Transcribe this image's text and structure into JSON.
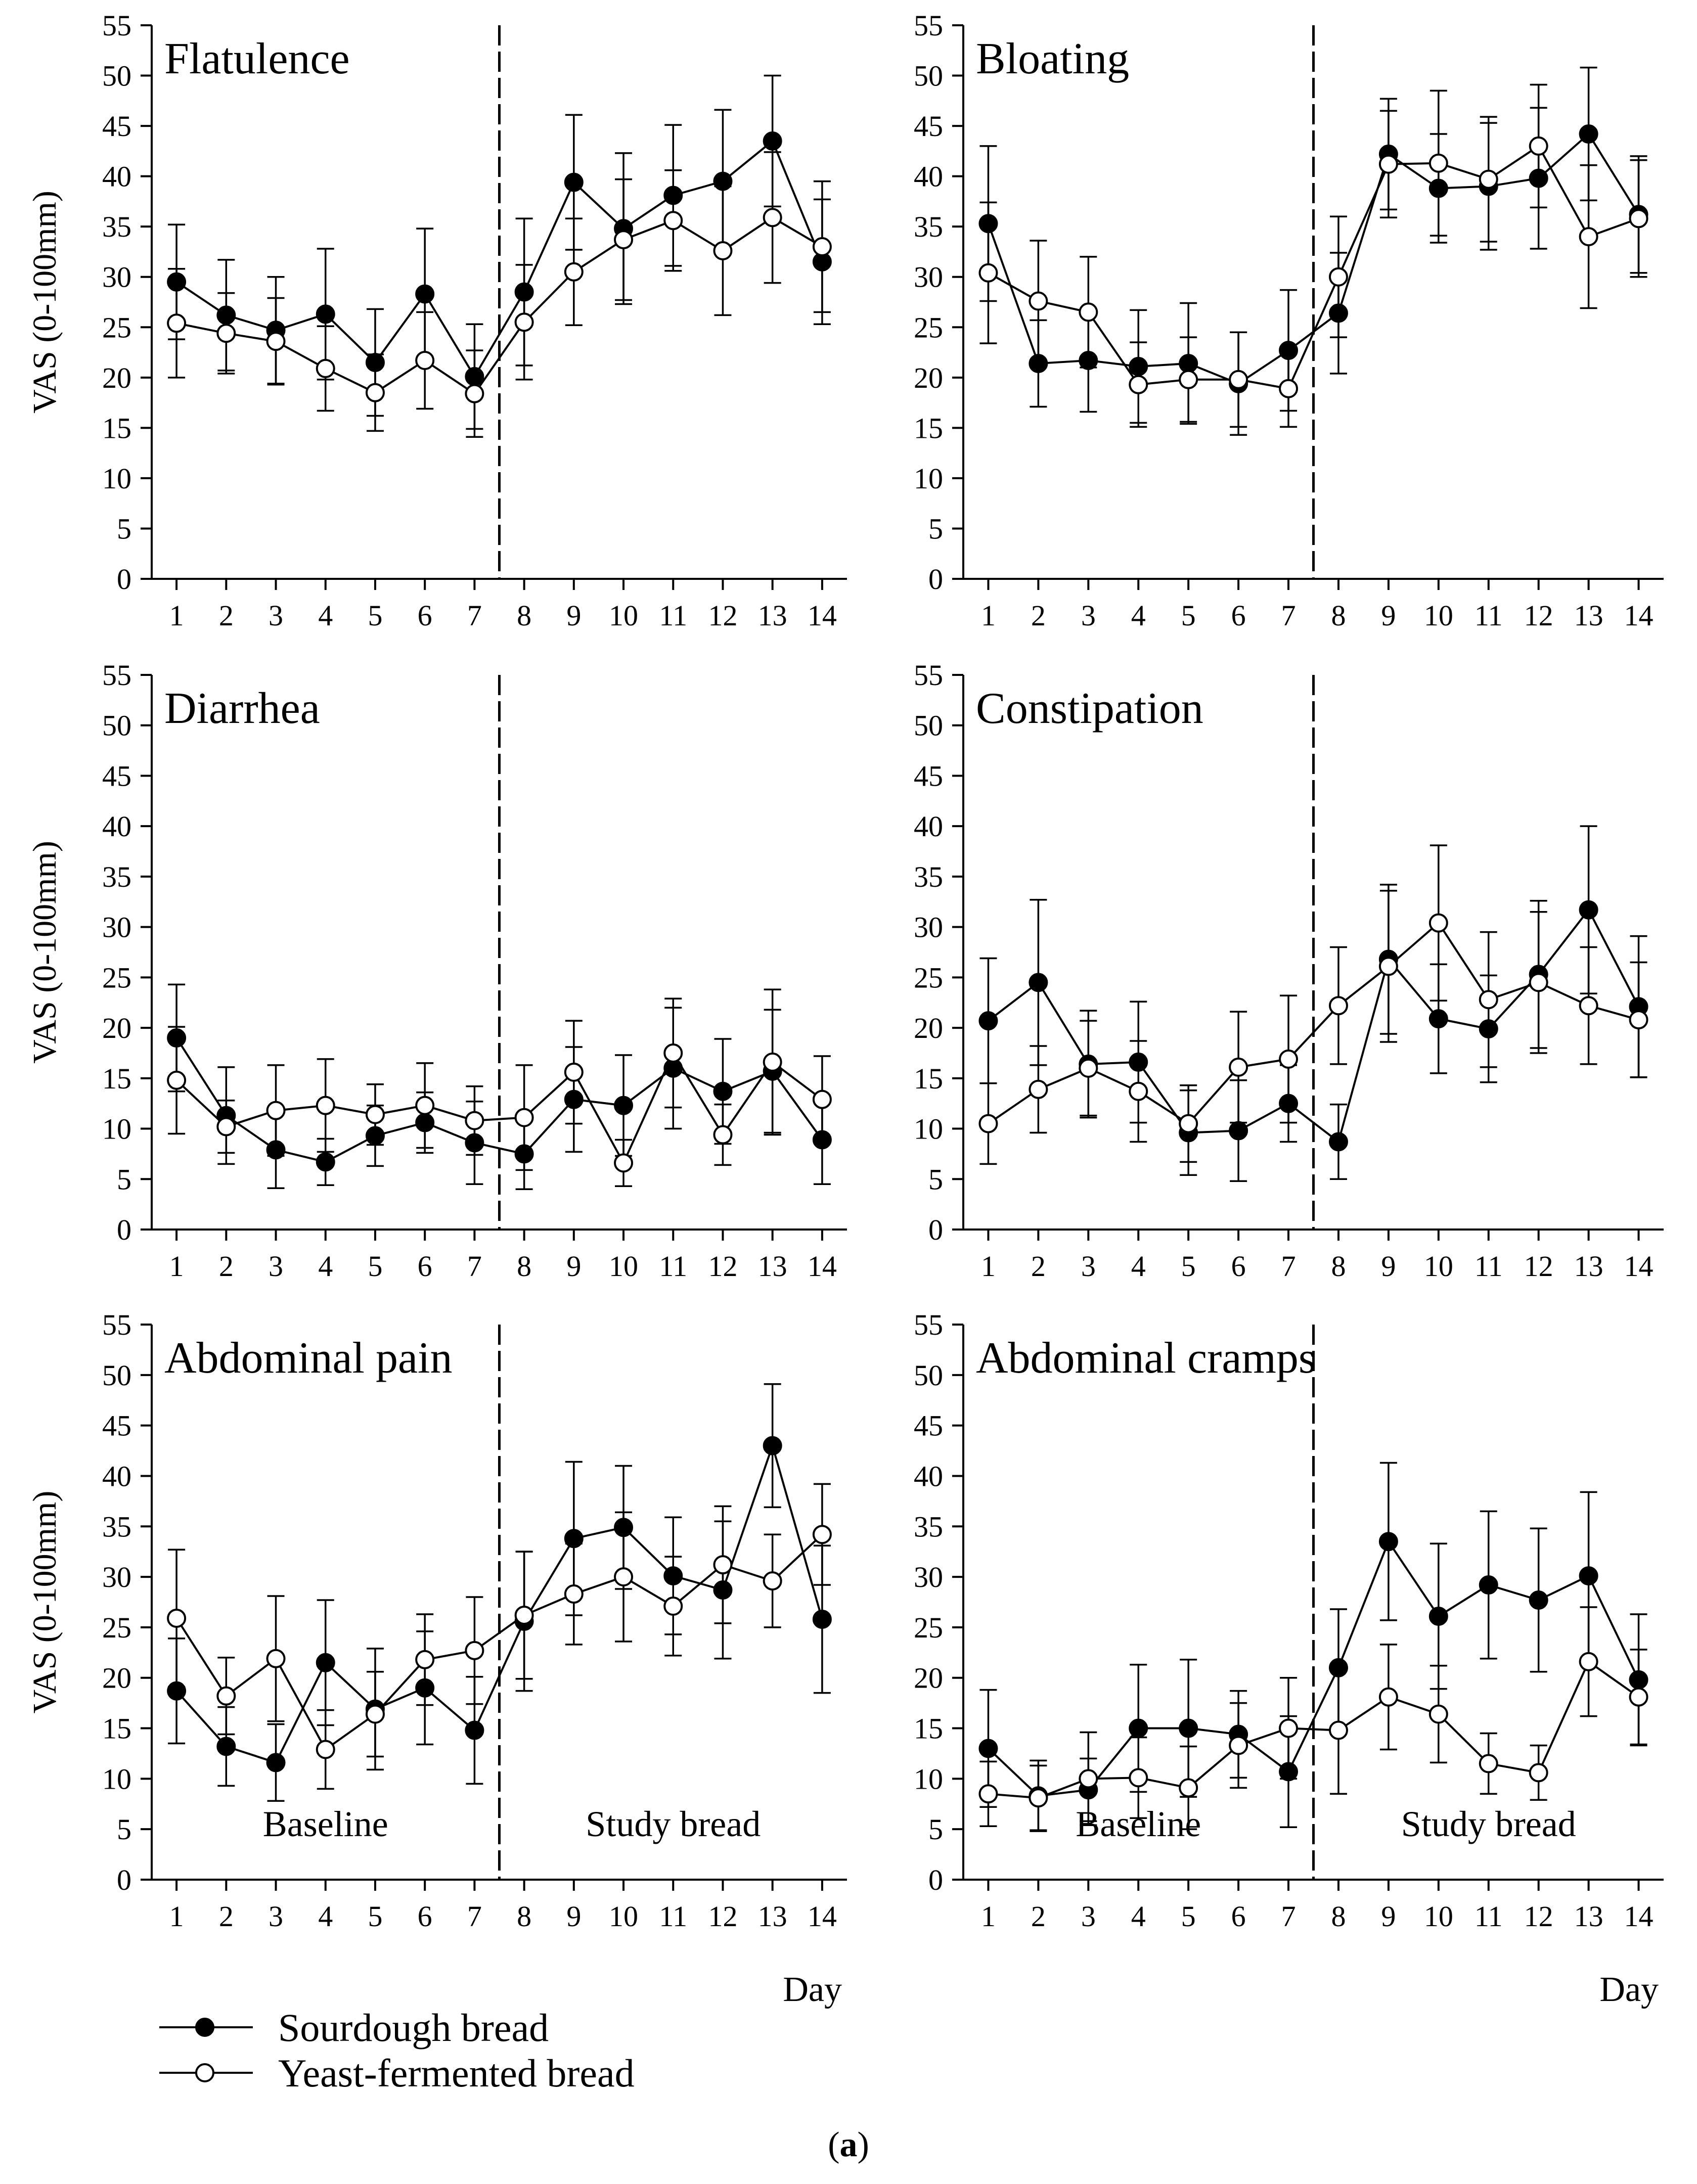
{
  "legend": {
    "sourdough": "Sourdough bread",
    "yeast": "Yeast-fermented bread"
  },
  "caption_letter": "a",
  "chart_data": [
    {
      "type": "line",
      "title": "Flatulence",
      "ylabel": "VAS (0-100mm)",
      "xlabel": "",
      "ylim": [
        0,
        55
      ],
      "yticks": [
        0,
        5,
        10,
        15,
        20,
        25,
        30,
        35,
        40,
        45,
        50,
        55
      ],
      "x": [
        1,
        2,
        3,
        4,
        5,
        6,
        7,
        8,
        9,
        10,
        11,
        12,
        13,
        14
      ],
      "divider_x": 7.5,
      "phase_labels": null,
      "series": [
        {
          "name": "Sourdough bread",
          "marker": "filled",
          "values": [
            29.5,
            26.2,
            24.7,
            26.3,
            21.5,
            28.3,
            20.1,
            28.5,
            39.4,
            34.8,
            38.1,
            39.5,
            43.5,
            31.5
          ],
          "err": [
            5.7,
            5.5,
            5.3,
            6.5,
            5.3,
            6.5,
            5.2,
            7.3,
            6.7,
            7.5,
            7.0,
            7.1,
            6.5,
            6.2
          ]
        },
        {
          "name": "Yeast-fermented bread",
          "marker": "open",
          "values": [
            25.4,
            24.4,
            23.6,
            20.9,
            18.5,
            21.7,
            18.4,
            25.5,
            30.5,
            33.7,
            35.6,
            32.6,
            35.9,
            33.0
          ],
          "err": [
            5.4,
            4.0,
            4.3,
            4.2,
            3.8,
            4.8,
            4.3,
            5.7,
            5.3,
            6.0,
            5.0,
            6.4,
            6.5,
            6.5
          ]
        }
      ]
    },
    {
      "type": "line",
      "title": "Bloating",
      "ylabel": "",
      "xlabel": "",
      "ylim": [
        0,
        55
      ],
      "yticks": [
        0,
        5,
        10,
        15,
        20,
        25,
        30,
        35,
        40,
        45,
        50,
        55
      ],
      "x": [
        1,
        2,
        3,
        4,
        5,
        6,
        7,
        8,
        9,
        10,
        11,
        12,
        13,
        14
      ],
      "divider_x": 7.5,
      "phase_labels": null,
      "series": [
        {
          "name": "Sourdough bread",
          "marker": "filled",
          "values": [
            35.3,
            21.4,
            21.7,
            21.1,
            21.4,
            19.4,
            22.7,
            26.4,
            42.2,
            38.8,
            39.0,
            39.8,
            44.2,
            36.2
          ],
          "err": [
            7.7,
            4.3,
            5.1,
            5.6,
            6.0,
            5.1,
            6.0,
            6.0,
            5.5,
            5.4,
            6.3,
            7.0,
            6.6,
            5.8
          ]
        },
        {
          "name": "Yeast-fermented bread",
          "marker": "open",
          "values": [
            30.4,
            27.6,
            26.5,
            19.3,
            19.8,
            19.8,
            18.9,
            30.0,
            41.2,
            41.3,
            39.7,
            43.0,
            34.0,
            35.8
          ],
          "err": [
            7.0,
            6.0,
            5.5,
            4.2,
            4.2,
            4.7,
            3.8,
            6.0,
            5.3,
            7.2,
            6.2,
            6.1,
            7.1,
            5.8
          ]
        }
      ]
    },
    {
      "type": "line",
      "title": "Diarrhea",
      "ylabel": "VAS (0-100mm)",
      "xlabel": "",
      "ylim": [
        0,
        55
      ],
      "yticks": [
        0,
        5,
        10,
        15,
        20,
        25,
        30,
        35,
        40,
        45,
        50,
        55
      ],
      "x": [
        1,
        2,
        3,
        4,
        5,
        6,
        7,
        8,
        9,
        10,
        11,
        12,
        13,
        14
      ],
      "divider_x": 7.5,
      "phase_labels": null,
      "series": [
        {
          "name": "Sourdough bread",
          "marker": "filled",
          "values": [
            19.0,
            11.3,
            7.9,
            6.7,
            9.3,
            10.6,
            8.6,
            7.5,
            12.9,
            12.3,
            16.0,
            13.7,
            15.7,
            8.9
          ],
          "err": [
            5.3,
            4.8,
            3.8,
            2.3,
            3.0,
            3.0,
            4.1,
            3.5,
            5.2,
            5.0,
            6.0,
            5.2,
            6.1,
            4.4
          ]
        },
        {
          "name": "Yeast-fermented bread",
          "marker": "open",
          "values": [
            14.8,
            10.2,
            11.8,
            12.3,
            11.4,
            12.3,
            10.8,
            11.1,
            15.6,
            6.6,
            17.5,
            9.4,
            16.6,
            12.9
          ],
          "err": [
            5.3,
            2.6,
            4.5,
            4.6,
            3.0,
            4.2,
            3.4,
            5.2,
            5.1,
            2.3,
            5.4,
            3.0,
            7.2,
            4.3
          ]
        }
      ]
    },
    {
      "type": "line",
      "title": "Constipation",
      "ylabel": "",
      "xlabel": "",
      "ylim": [
        0,
        55
      ],
      "yticks": [
        0,
        5,
        10,
        15,
        20,
        25,
        30,
        35,
        40,
        45,
        50,
        55
      ],
      "x": [
        1,
        2,
        3,
        4,
        5,
        6,
        7,
        8,
        9,
        10,
        11,
        12,
        13,
        14
      ],
      "divider_x": 7.5,
      "phase_labels": null,
      "series": [
        {
          "name": "Sourdough bread",
          "marker": "filled",
          "values": [
            20.7,
            24.5,
            16.4,
            16.6,
            9.6,
            9.8,
            12.5,
            8.7,
            26.8,
            20.9,
            19.9,
            25.3,
            31.7,
            22.1
          ],
          "err": [
            6.2,
            8.2,
            5.3,
            6.0,
            4.2,
            5.0,
            3.8,
            3.7,
            7.4,
            5.4,
            5.3,
            7.3,
            8.3,
            7.0
          ]
        },
        {
          "name": "Yeast-fermented bread",
          "marker": "open",
          "values": [
            10.5,
            13.9,
            16.0,
            13.7,
            10.5,
            16.1,
            16.9,
            22.2,
            26.1,
            30.4,
            22.8,
            24.5,
            22.2,
            20.8
          ],
          "err": [
            4.0,
            4.3,
            4.7,
            5.0,
            3.8,
            5.5,
            6.3,
            5.8,
            7.5,
            7.7,
            6.7,
            7.0,
            5.8,
            5.7
          ]
        }
      ]
    },
    {
      "type": "line",
      "title": "Abdominal pain",
      "ylabel": "VAS (0-100mm)",
      "xlabel": "",
      "ylim": [
        0,
        55
      ],
      "yticks": [
        0,
        5,
        10,
        15,
        20,
        25,
        30,
        35,
        40,
        45,
        50,
        55
      ],
      "x": [
        1,
        2,
        3,
        4,
        5,
        6,
        7,
        8,
        9,
        10,
        11,
        12,
        13,
        14
      ],
      "divider_x": 7.5,
      "phase_labels": {
        "baseline": "Baseline",
        "study": "Study bread"
      },
      "series": [
        {
          "name": "Sourdough bread",
          "marker": "filled",
          "values": [
            18.7,
            13.2,
            11.6,
            21.5,
            16.9,
            19.0,
            14.8,
            25.6,
            33.8,
            34.9,
            30.1,
            28.7,
            43.0,
            25.8
          ],
          "err": [
            5.2,
            3.9,
            3.8,
            6.2,
            6.0,
            5.6,
            5.3,
            6.9,
            7.6,
            6.1,
            5.8,
            6.8,
            6.1,
            7.3
          ]
        },
        {
          "name": "Yeast-fermented bread",
          "marker": "open",
          "values": [
            25.9,
            18.2,
            21.9,
            12.9,
            16.4,
            21.8,
            22.7,
            26.2,
            28.3,
            30.0,
            27.1,
            31.2,
            29.6,
            34.2
          ],
          "err": [
            6.8,
            3.8,
            6.2,
            3.9,
            4.2,
            4.5,
            5.3,
            6.3,
            5.0,
            6.4,
            4.9,
            5.8,
            4.6,
            5.0
          ]
        }
      ]
    },
    {
      "type": "line",
      "title": "Abdominal cramps",
      "ylabel": "",
      "xlabel": "Day",
      "ylim": [
        0,
        55
      ],
      "yticks": [
        0,
        5,
        10,
        15,
        20,
        25,
        30,
        35,
        40,
        45,
        50,
        55
      ],
      "x": [
        1,
        2,
        3,
        4,
        5,
        6,
        7,
        8,
        9,
        10,
        11,
        12,
        13,
        14
      ],
      "divider_x": 7.5,
      "phase_labels": {
        "baseline": "Baseline",
        "study": "Study bread"
      },
      "series": [
        {
          "name": "Sourdough bread",
          "marker": "filled",
          "values": [
            13.0,
            8.3,
            8.9,
            15.0,
            15.0,
            14.4,
            10.7,
            21.0,
            33.5,
            26.1,
            29.2,
            27.7,
            30.1,
            19.8
          ],
          "err": [
            5.8,
            3.5,
            3.1,
            6.3,
            6.8,
            4.3,
            5.5,
            5.8,
            7.8,
            7.2,
            7.3,
            7.1,
            8.3,
            6.5
          ]
        },
        {
          "name": "Yeast-fermented bread",
          "marker": "open",
          "values": [
            8.5,
            8.1,
            10.0,
            10.1,
            9.1,
            13.3,
            15.0,
            14.8,
            18.1,
            16.4,
            11.5,
            10.6,
            21.6,
            18.1
          ],
          "err": [
            3.2,
            3.2,
            4.6,
            4.0,
            4.1,
            4.2,
            5.0,
            6.3,
            5.2,
            4.8,
            3.0,
            2.7,
            5.4,
            4.7
          ]
        }
      ]
    }
  ]
}
